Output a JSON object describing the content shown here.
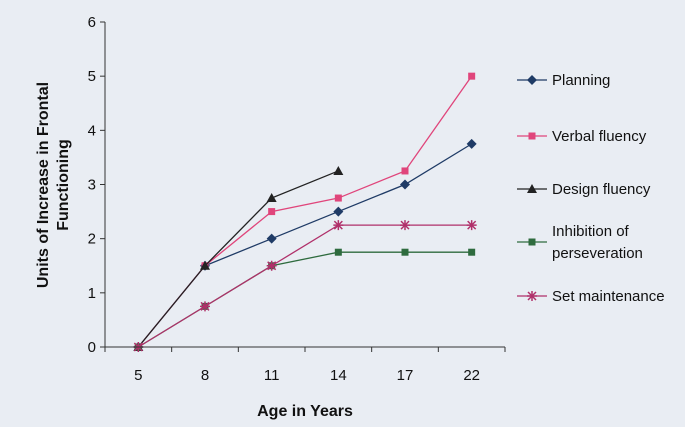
{
  "chart_data": {
    "type": "line",
    "title": "",
    "xlabel": "Age in Years",
    "ylabel_lines": [
      "Units of Increase in Frontal",
      "Functioning"
    ],
    "categories": [
      "5",
      "8",
      "11",
      "14",
      "17",
      "22"
    ],
    "ylim": [
      0,
      6
    ],
    "yticks": [
      "0",
      "1",
      "2",
      "3",
      "4",
      "5",
      "6"
    ],
    "grid": false,
    "legend_position": "right",
    "background": "#e9edf3",
    "series": [
      {
        "name": "Planning",
        "label_lines": [
          "Planning"
        ],
        "color": "#1f3b66",
        "marker": "diamond",
        "values": [
          0,
          1.5,
          2.0,
          2.5,
          3.0,
          3.75
        ]
      },
      {
        "name": "Verbal fluency",
        "label_lines": [
          "Verbal fluency"
        ],
        "color": "#e0457b",
        "marker": "square",
        "values": [
          0,
          1.5,
          2.5,
          2.75,
          3.25,
          5.0
        ]
      },
      {
        "name": "Design fluency",
        "label_lines": [
          "Design fluency"
        ],
        "color": "#222222",
        "marker": "triangle",
        "values": [
          0,
          1.5,
          2.75,
          3.25,
          null,
          null
        ]
      },
      {
        "name": "Inhibition of perseveration",
        "label_lines": [
          "Inhibition of",
          "perseveration"
        ],
        "color": "#2e6b3e",
        "marker": "square",
        "values": [
          0,
          0.75,
          1.5,
          1.75,
          1.75,
          1.75
        ]
      },
      {
        "name": "Set maintenance",
        "label_lines": [
          "Set maintenance"
        ],
        "color": "#b0306a",
        "marker": "star",
        "values": [
          0,
          0.75,
          1.5,
          2.25,
          2.25,
          2.25
        ]
      }
    ]
  }
}
